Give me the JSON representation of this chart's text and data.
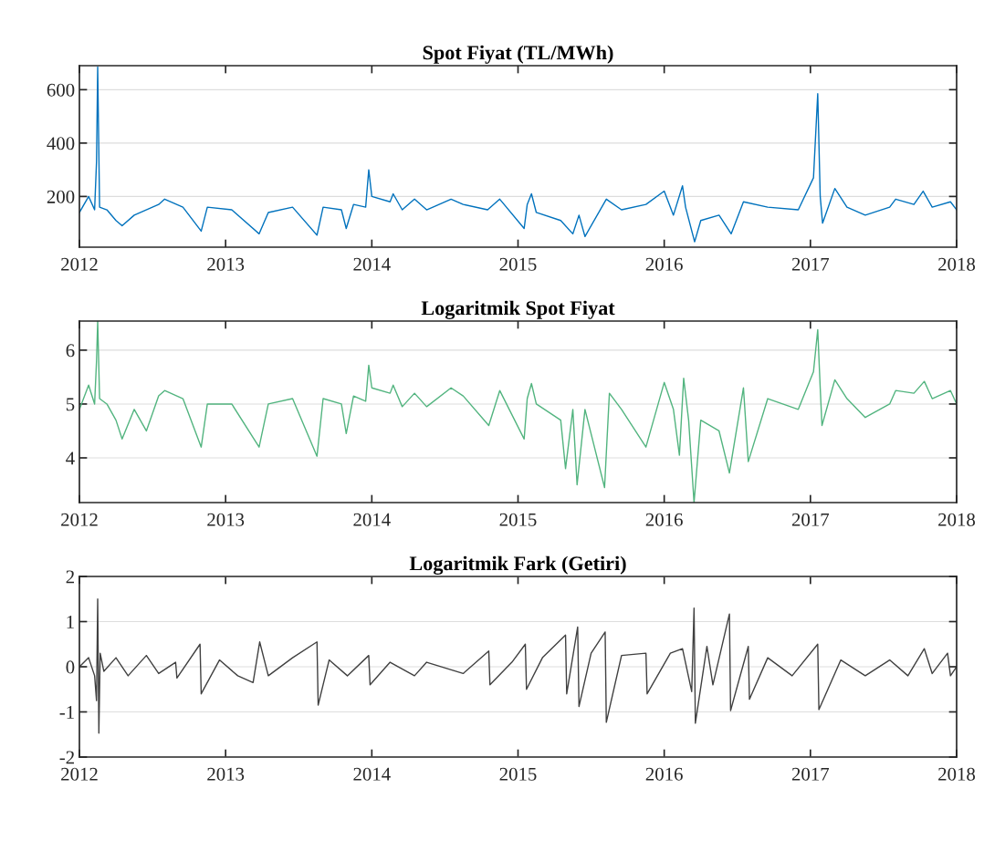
{
  "chart_data": [
    {
      "type": "line",
      "title": "Spot Fiyat (TL/MWh)",
      "xlim": [
        2012,
        2018
      ],
      "xticks": [
        2012,
        2013,
        2014,
        2015,
        2016,
        2017,
        2018
      ],
      "ylim": [
        10,
        690
      ],
      "yticks": [
        200,
        400,
        600
      ],
      "grid": "y",
      "series": [
        {
          "color": "#0072bd",
          "x": [
            2012.0,
            2012.063,
            2012.104,
            2012.117,
            2012.125,
            2012.138,
            2012.188,
            2012.25,
            2012.292,
            2012.375,
            2012.542,
            2012.583,
            2012.708,
            2012.833,
            2012.875,
            2013.042,
            2013.229,
            2013.292,
            2013.458,
            2013.625,
            2013.667,
            2013.792,
            2013.825,
            2013.875,
            2013.958,
            2013.979,
            2014.0,
            2014.125,
            2014.146,
            2014.208,
            2014.292,
            2014.375,
            2014.542,
            2014.625,
            2014.792,
            2014.875,
            2015.042,
            2015.063,
            2015.092,
            2015.125,
            2015.292,
            2015.375,
            2015.417,
            2015.458,
            2015.604,
            2015.708,
            2015.875,
            2016.0,
            2016.063,
            2016.125,
            2016.146,
            2016.208,
            2016.25,
            2016.375,
            2016.458,
            2016.542,
            2016.708,
            2016.917,
            2017.021,
            2017.05,
            2017.067,
            2017.083,
            2017.167,
            2017.25,
            2017.375,
            2017.542,
            2017.583,
            2017.708,
            2017.771,
            2017.833,
            2017.958,
            2018.0
          ],
          "values": [
            140,
            200,
            150,
            330,
            685,
            160,
            150,
            110,
            90,
            130,
            170,
            190,
            160,
            70,
            160,
            150,
            60,
            140,
            160,
            55,
            160,
            150,
            80,
            170,
            160,
            300,
            200,
            180,
            210,
            150,
            190,
            150,
            190,
            170,
            150,
            190,
            80,
            170,
            210,
            140,
            110,
            60,
            130,
            50,
            190,
            150,
            170,
            220,
            130,
            240,
            160,
            30,
            110,
            130,
            60,
            180,
            160,
            150,
            270,
            585,
            200,
            100,
            230,
            160,
            130,
            160,
            190,
            170,
            220,
            160,
            180,
            150
          ]
        }
      ]
    },
    {
      "type": "line",
      "title": "Logaritmik Spot Fiyat",
      "xlim": [
        2012,
        2018
      ],
      "xticks": [
        2012,
        2013,
        2014,
        2015,
        2016,
        2017,
        2018
      ],
      "ylim": [
        3.17,
        6.54
      ],
      "yticks": [
        4,
        5,
        6
      ],
      "grid": "y",
      "series": [
        {
          "color": "#52b47f",
          "x": [
            2012.0,
            2012.063,
            2012.104,
            2012.117,
            2012.125,
            2012.138,
            2012.188,
            2012.25,
            2012.292,
            2012.375,
            2012.458,
            2012.542,
            2012.583,
            2012.708,
            2012.833,
            2012.875,
            2013.042,
            2013.229,
            2013.292,
            2013.458,
            2013.625,
            2013.667,
            2013.792,
            2013.825,
            2013.875,
            2013.958,
            2013.979,
            2014.0,
            2014.125,
            2014.146,
            2014.208,
            2014.292,
            2014.375,
            2014.542,
            2014.625,
            2014.8,
            2014.875,
            2015.042,
            2015.063,
            2015.092,
            2015.125,
            2015.292,
            2015.325,
            2015.375,
            2015.404,
            2015.458,
            2015.592,
            2015.625,
            2015.708,
            2015.875,
            2016.0,
            2016.063,
            2016.104,
            2016.133,
            2016.167,
            2016.204,
            2016.25,
            2016.375,
            2016.446,
            2016.542,
            2016.575,
            2016.708,
            2016.917,
            2017.021,
            2017.05,
            2017.067,
            2017.079,
            2017.167,
            2017.25,
            2017.375,
            2017.542,
            2017.583,
            2017.708,
            2017.779,
            2017.833,
            2017.958,
            2018.0
          ],
          "values": [
            4.9,
            5.35,
            5.0,
            5.8,
            6.54,
            5.1,
            5.0,
            4.7,
            4.35,
            4.9,
            4.5,
            5.15,
            5.25,
            5.1,
            4.2,
            5.0,
            5.0,
            4.2,
            5.0,
            5.1,
            4.03,
            5.1,
            5.0,
            4.45,
            5.15,
            5.05,
            5.72,
            5.3,
            5.2,
            5.35,
            4.95,
            5.2,
            4.95,
            5.3,
            5.15,
            4.6,
            5.25,
            4.35,
            5.1,
            5.38,
            5.0,
            4.7,
            3.8,
            4.9,
            3.5,
            4.9,
            3.45,
            5.2,
            4.9,
            4.2,
            5.4,
            4.9,
            4.05,
            5.48,
            4.7,
            3.17,
            4.7,
            4.5,
            3.72,
            5.3,
            3.93,
            5.1,
            4.9,
            5.6,
            6.38,
            5.3,
            4.6,
            5.45,
            5.1,
            4.75,
            5.0,
            5.25,
            5.2,
            5.42,
            5.1,
            5.25,
            5.0
          ]
        }
      ]
    },
    {
      "type": "line",
      "title": "Logaritmik Fark (Getiri)",
      "xlim": [
        2012,
        2018
      ],
      "xticks": [
        2012,
        2013,
        2014,
        2015,
        2016,
        2017,
        2018
      ],
      "ylim": [
        -2,
        2
      ],
      "yticks": [
        -2,
        -1,
        0,
        1,
        2
      ],
      "grid": "y",
      "series": [
        {
          "color": "#404040",
          "x": [
            2012.0,
            2012.063,
            2012.104,
            2012.117,
            2012.125,
            2012.133,
            2012.142,
            2012.167,
            2012.25,
            2012.333,
            2012.458,
            2012.542,
            2012.658,
            2012.667,
            2012.825,
            2012.833,
            2012.958,
            2013.083,
            2013.188,
            2013.233,
            2013.292,
            2013.458,
            2013.625,
            2013.633,
            2013.708,
            2013.833,
            2013.979,
            2013.988,
            2014.125,
            2014.292,
            2014.375,
            2014.625,
            2014.8,
            2014.808,
            2014.958,
            2015.05,
            2015.058,
            2015.167,
            2015.325,
            2015.333,
            2015.408,
            2015.417,
            2015.5,
            2015.596,
            2015.604,
            2015.708,
            2015.875,
            2015.883,
            2016.042,
            2016.125,
            2016.188,
            2016.204,
            2016.213,
            2016.292,
            2016.333,
            2016.446,
            2016.454,
            2016.575,
            2016.583,
            2016.708,
            2016.875,
            2017.05,
            2017.058,
            2017.208,
            2017.375,
            2017.542,
            2017.667,
            2017.779,
            2017.833,
            2017.938,
            2017.958,
            2018.0
          ],
          "values": [
            0,
            0.2,
            -0.2,
            -0.75,
            1.5,
            -1.47,
            0.3,
            -0.1,
            0.2,
            -0.2,
            0.25,
            -0.15,
            0.1,
            -0.25,
            0.5,
            -0.6,
            0.15,
            -0.2,
            -0.35,
            0.55,
            -0.2,
            0.2,
            0.55,
            -0.85,
            0.15,
            -0.2,
            0.25,
            -0.4,
            0.1,
            -0.2,
            0.1,
            -0.15,
            0.35,
            -0.4,
            0.1,
            0.5,
            -0.5,
            0.2,
            0.7,
            -0.6,
            0.88,
            -0.88,
            0.3,
            0.77,
            -1.23,
            0.25,
            0.3,
            -0.6,
            0.3,
            0.4,
            -0.55,
            1.3,
            -1.25,
            0.45,
            -0.4,
            1.17,
            -0.97,
            0.45,
            -0.72,
            0.2,
            -0.2,
            0.5,
            -0.95,
            0.15,
            -0.2,
            0.15,
            -0.2,
            0.4,
            -0.15,
            0.3,
            -0.2,
            0.0
          ]
        }
      ]
    }
  ]
}
